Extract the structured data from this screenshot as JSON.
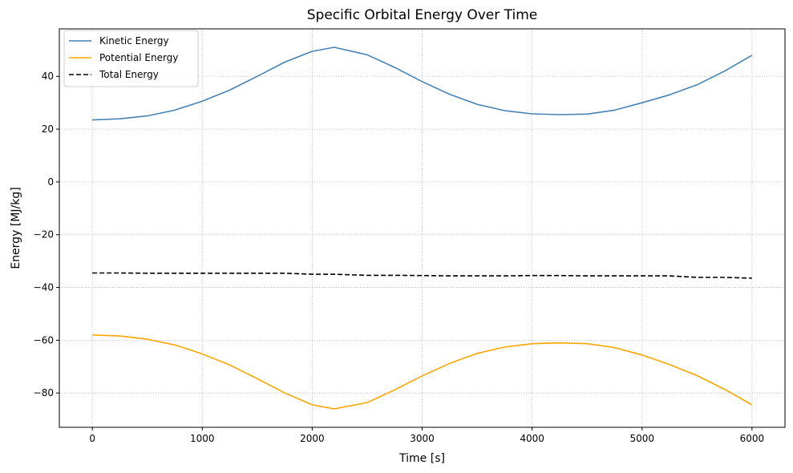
{
  "chart_data": {
    "type": "line",
    "title": "Specific Orbital Energy Over Time",
    "xlabel": "Time [s]",
    "ylabel": "Energy [MJ/kg]",
    "xlim": [
      -300,
      6300
    ],
    "ylim": [
      -93,
      58
    ],
    "xticks": [
      0,
      1000,
      2000,
      3000,
      4000,
      5000,
      6000
    ],
    "xtick_labels": [
      "0",
      "1000",
      "2000",
      "3000",
      "4000",
      "5000",
      "6000"
    ],
    "yticks": [
      -80,
      -60,
      -40,
      -20,
      0,
      20,
      40
    ],
    "ytick_labels": [
      "−80",
      "−60",
      "−40",
      "−20",
      "0",
      "20",
      "40"
    ],
    "grid": true,
    "legend_position": "top-left",
    "x": [
      0,
      250,
      500,
      750,
      1000,
      1250,
      1500,
      1750,
      2000,
      2200,
      2500,
      2750,
      3000,
      3250,
      3500,
      3750,
      4000,
      4250,
      4500,
      4750,
      5000,
      5250,
      5500,
      5750,
      6000
    ],
    "series": [
      {
        "name": "Kinetic Energy",
        "color": "#4682b4",
        "style": "solid",
        "values": [
          23.5,
          23.9,
          25.0,
          27.2,
          30.6,
          34.8,
          40.0,
          45.4,
          49.5,
          51.0,
          48.2,
          43.4,
          38.0,
          33.2,
          29.4,
          27.0,
          25.8,
          25.5,
          25.7,
          27.2,
          30.0,
          33.0,
          36.8,
          42.0,
          48.0
        ]
      },
      {
        "name": "Potential Energy",
        "color": "#ffa500",
        "style": "solid",
        "values": [
          -58.0,
          -58.4,
          -59.6,
          -61.8,
          -65.2,
          -69.4,
          -74.6,
          -80.0,
          -84.5,
          -86.0,
          -83.6,
          -78.8,
          -73.5,
          -68.8,
          -65.0,
          -62.6,
          -61.3,
          -61.0,
          -61.3,
          -62.8,
          -65.6,
          -69.2,
          -73.4,
          -78.6,
          -84.5
        ]
      },
      {
        "name": "Total Energy",
        "color": "#000000",
        "style": "dashed",
        "values": [
          -34.5,
          -34.5,
          -34.6,
          -34.6,
          -34.6,
          -34.6,
          -34.6,
          -34.6,
          -35.0,
          -35.0,
          -35.4,
          -35.4,
          -35.5,
          -35.6,
          -35.6,
          -35.6,
          -35.5,
          -35.5,
          -35.6,
          -35.6,
          -35.6,
          -35.6,
          -36.2,
          -36.2,
          -36.5
        ]
      }
    ]
  }
}
